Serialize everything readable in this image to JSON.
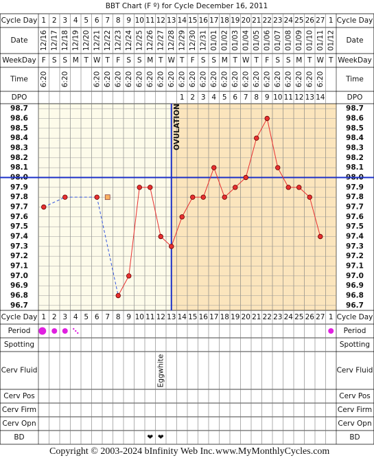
{
  "title": "BBT Chart (F º) for Cycle December 16, 2011",
  "row_labels": {
    "cycle_day": "Cycle Day",
    "date": "Date",
    "weekday": "WeekDay",
    "time": "Time",
    "dpo": "DPO",
    "period": "Period",
    "spotting": "Spotting",
    "cerv_fluid": "Cerv Fluid",
    "cerv_pos": "Cerv Pos",
    "cerv_firm": "Cerv Firm",
    "cerv_opn": "Cerv Opn",
    "bd": "BD"
  },
  "cycle_days": [
    1,
    2,
    3,
    4,
    5,
    6,
    7,
    8,
    9,
    10,
    11,
    12,
    13,
    14,
    15,
    16,
    17,
    18,
    19,
    20,
    21,
    22,
    23,
    24,
    25,
    26,
    27,
    1
  ],
  "dates": [
    "12/16",
    "12/17",
    "12/18",
    "12/19",
    "12/20",
    "12/21",
    "12/22",
    "12/23",
    "12/24",
    "12/25",
    "12/26",
    "12/27",
    "12/28",
    "12/29",
    "12/30",
    "12/31",
    "01/01",
    "01/02",
    "01/03",
    "01/04",
    "01/05",
    "01/06",
    "01/07",
    "01/08",
    "01/09",
    "01/10",
    "01/11",
    "01/12"
  ],
  "weekdays": [
    "F",
    "S",
    "S",
    "M",
    "T",
    "W",
    "T",
    "F",
    "S",
    "S",
    "M",
    "T",
    "W",
    "T",
    "F",
    "S",
    "S",
    "M",
    "T",
    "W",
    "T",
    "F",
    "S",
    "S",
    "M",
    "T",
    "W",
    "T"
  ],
  "times": [
    "6:20",
    null,
    "6:20",
    null,
    null,
    "6:20",
    "6:20",
    "6:20",
    "6:20",
    "6:20",
    "6:20",
    "6:20",
    "6:20",
    "6:20",
    "6:20",
    "6:20",
    "6:20",
    "6:20",
    "6:20",
    "6:20",
    "6:20",
    "6:20",
    "6:20",
    "6:20",
    "6:20",
    "6:20",
    "6:20",
    null
  ],
  "dpo": [
    null,
    null,
    null,
    null,
    null,
    null,
    null,
    null,
    null,
    null,
    null,
    null,
    null,
    1,
    2,
    3,
    4,
    5,
    6,
    7,
    8,
    9,
    10,
    11,
    12,
    13,
    14,
    null
  ],
  "chart_data": {
    "type": "line",
    "ylim": [
      96.65,
      98.75
    ],
    "yticks": [
      {
        "value": 96.7,
        "label": "96.7"
      },
      96.8,
      96.9,
      {
        "value": 97.0,
        "label": "97.0"
      },
      97.1,
      97.2,
      97.3,
      97.4,
      97.5,
      97.6,
      97.7,
      97.8,
      97.9,
      {
        "value": 98.0,
        "label": "98.0"
      },
      98.1,
      98.2,
      98.3,
      98.4,
      98.5,
      98.6,
      98.7
    ],
    "values": [
      97.7,
      null,
      97.8,
      null,
      null,
      97.8,
      null,
      96.8,
      97.0,
      97.9,
      97.9,
      97.4,
      97.3,
      97.6,
      97.8,
      97.8,
      98.1,
      97.8,
      97.9,
      98.0,
      98.4,
      98.6,
      98.1,
      97.9,
      97.9,
      97.8,
      97.4,
      null
    ],
    "discarded": [
      null,
      null,
      null,
      null,
      null,
      null,
      97.8,
      null,
      null,
      null,
      null,
      null,
      null,
      null,
      null,
      null,
      null,
      null,
      null,
      null,
      null,
      null,
      null,
      null,
      null,
      null,
      null,
      null
    ],
    "color": "#e83030",
    "coverline": 98.0,
    "ovulation_day": 13,
    "ovulation_label": "OVULATION"
  },
  "period": [
    "heavy",
    "medium",
    "medium",
    "spot",
    null,
    null,
    null,
    null,
    null,
    null,
    null,
    null,
    null,
    null,
    null,
    null,
    null,
    null,
    null,
    null,
    null,
    null,
    null,
    null,
    null,
    null,
    null,
    "medium"
  ],
  "cerv_fluid": [
    null,
    null,
    null,
    null,
    null,
    null,
    null,
    null,
    null,
    null,
    null,
    "Eggwhite",
    null,
    null,
    null,
    null,
    null,
    null,
    null,
    null,
    null,
    null,
    null,
    null,
    null,
    null,
    null,
    null
  ],
  "bd": [
    null,
    null,
    null,
    null,
    null,
    null,
    null,
    null,
    null,
    null,
    "❤",
    "❤",
    null,
    null,
    null,
    null,
    null,
    null,
    null,
    null,
    null,
    null,
    null,
    null,
    null,
    null,
    null,
    null
  ],
  "footer": {
    "copyright": "Copyright © 2003-2024 bInfinity Web Inc.",
    "site": "www.MyMonthlyCycles.com"
  }
}
